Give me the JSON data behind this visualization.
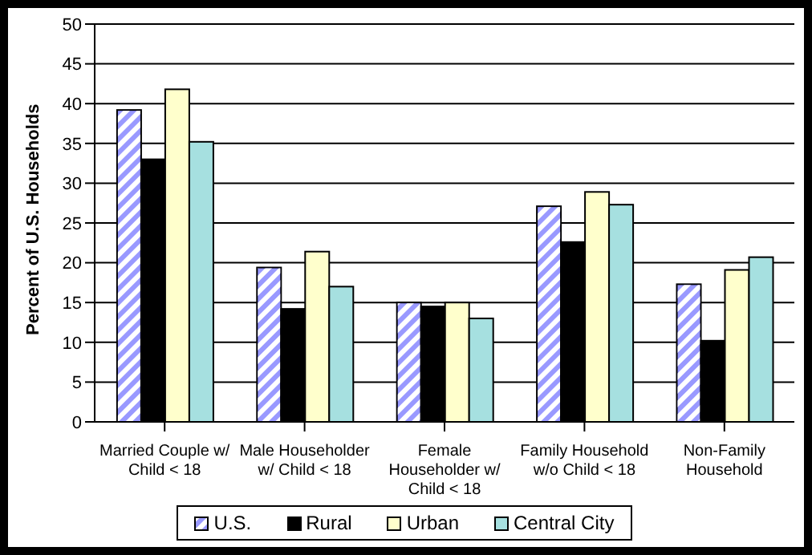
{
  "chart_data": {
    "type": "bar",
    "ylabel": "Percent of U.S. Households",
    "categories": [
      "Married Couple w/ Child < 18",
      "Male Householder w/ Child < 18",
      "Female Householder w/ Child < 18",
      "Family Household w/o Child < 18",
      "Non-Family Household"
    ],
    "series": [
      {
        "name": "U.S.",
        "color": "#9999ff",
        "values": [
          39.2,
          19.4,
          15.0,
          27.1,
          17.3
        ]
      },
      {
        "name": "Rural",
        "color": "#000000",
        "values": [
          33.0,
          14.2,
          14.5,
          22.6,
          10.2
        ]
      },
      {
        "name": "Urban",
        "color": "#ffffcc",
        "values": [
          41.8,
          21.4,
          15.0,
          28.9,
          19.1
        ]
      },
      {
        "name": "Central City",
        "color": "#a6e0e0",
        "values": [
          35.2,
          17.0,
          13.0,
          27.3,
          20.7
        ]
      }
    ],
    "ylim": [
      0,
      50
    ],
    "yticks": [
      0,
      5,
      10,
      15,
      20,
      25,
      30,
      35,
      40,
      45,
      50
    ],
    "grid": "y",
    "legend": "bottom"
  }
}
